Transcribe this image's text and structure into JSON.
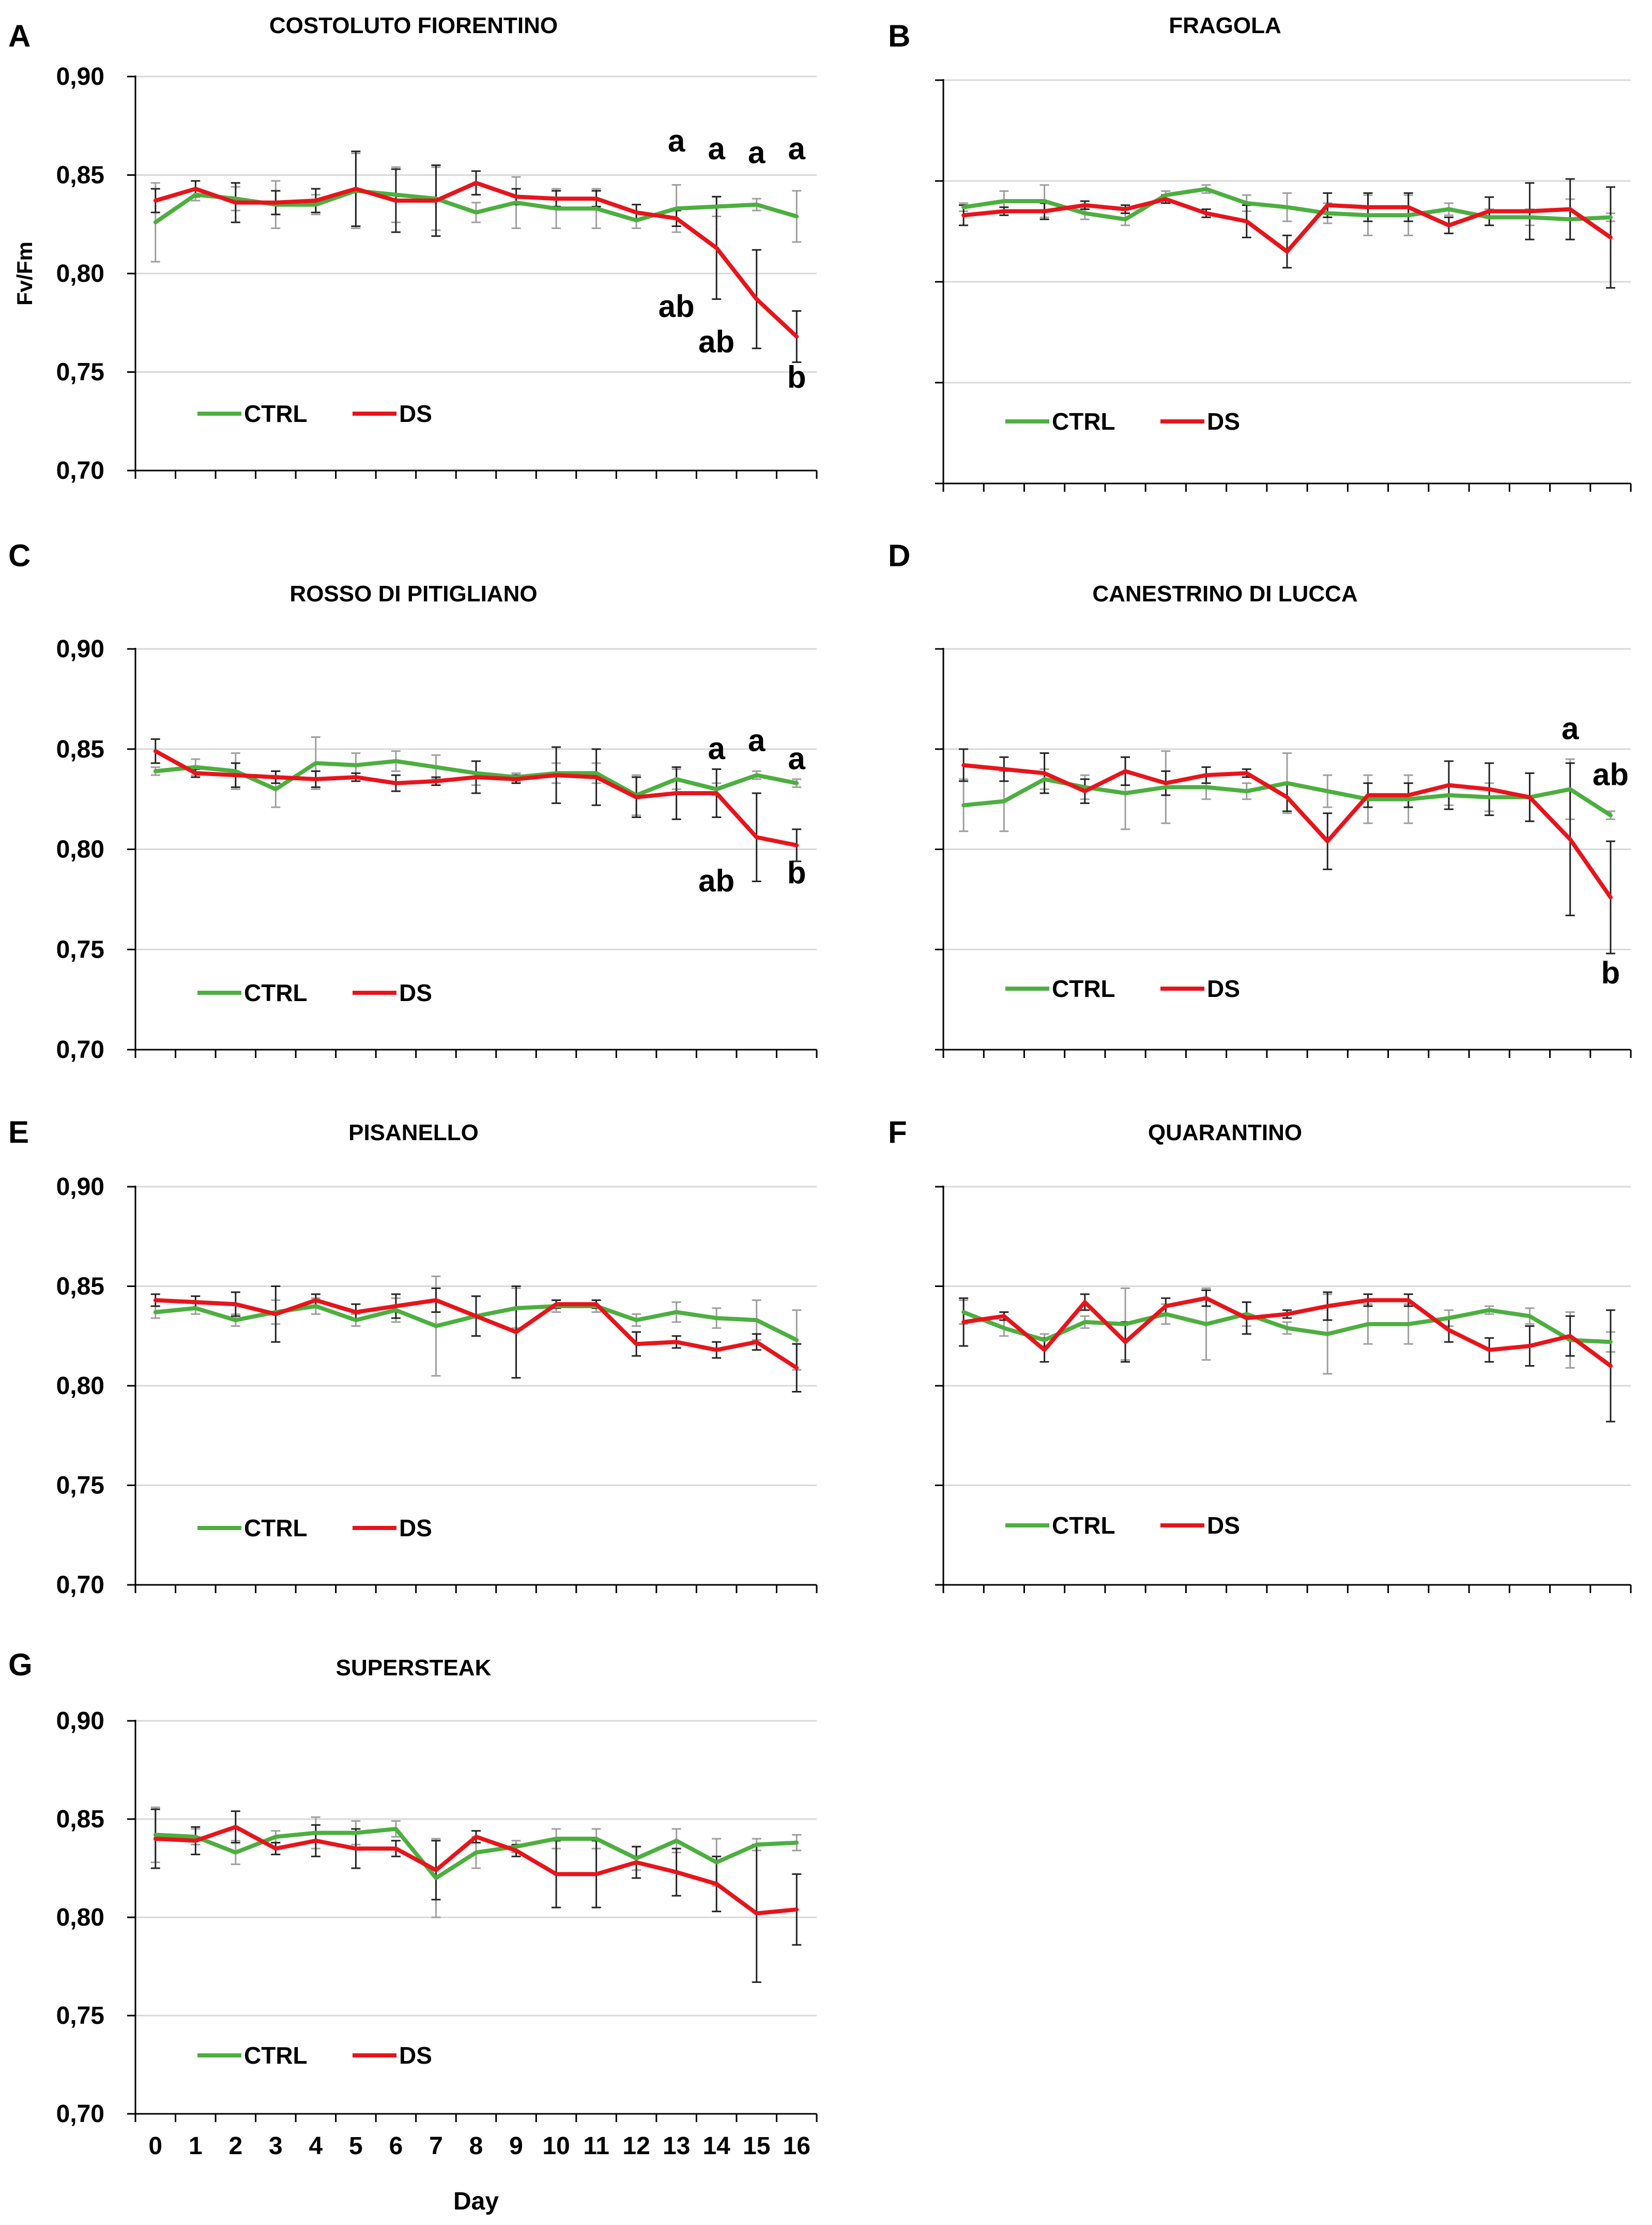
{
  "chart_data": [
    {
      "id": "A",
      "panel_label": "A",
      "type": "line",
      "title": "COSTOLUTO FIORENTINO",
      "ylabel": "Fv/Fm",
      "xlabel": "",
      "ylim": [
        0.7,
        0.9
      ],
      "yticks": [
        0.7,
        0.75,
        0.8,
        0.85,
        0.9
      ],
      "ytick_labels": [
        "0,70",
        "0,75",
        "0,80",
        "0,85",
        "0,90"
      ],
      "x": [
        0,
        1,
        2,
        3,
        4,
        5,
        6,
        7,
        8,
        9,
        10,
        11,
        12,
        13,
        14,
        15,
        16
      ],
      "xtick_labels": [],
      "legend": [
        "CTRL",
        "DS"
      ],
      "series": [
        {
          "name": "CTRL",
          "color": "#4caf3f",
          "values": [
            0.826,
            0.84,
            0.838,
            0.835,
            0.835,
            0.842,
            0.84,
            0.838,
            0.831,
            0.836,
            0.833,
            0.833,
            0.827,
            0.833,
            0.834,
            0.835,
            0.829
          ],
          "errors": [
            0.02,
            0.003,
            0.006,
            0.012,
            0.005,
            0.019,
            0.014,
            0.016,
            0.005,
            0.013,
            0.01,
            0.01,
            0.004,
            0.012,
            0.005,
            0.003,
            0.013
          ]
        },
        {
          "name": "DS",
          "color": "#e8141c",
          "values": [
            0.837,
            0.843,
            0.836,
            0.836,
            0.837,
            0.843,
            0.837,
            0.837,
            0.846,
            0.839,
            0.838,
            0.838,
            0.831,
            0.828,
            0.813,
            0.787,
            0.768
          ],
          "errors": [
            0.006,
            0.004,
            0.01,
            0.006,
            0.006,
            0.019,
            0.016,
            0.018,
            0.006,
            0.004,
            0.004,
            0.004,
            0.004,
            0.004,
            0.026,
            0.025,
            0.013
          ]
        }
      ],
      "annotations": [
        {
          "text": "a",
          "x": 13,
          "y": 0.862
        },
        {
          "text": "a",
          "x": 14,
          "y": 0.858
        },
        {
          "text": "a",
          "x": 15,
          "y": 0.856
        },
        {
          "text": "a",
          "x": 16,
          "y": 0.858
        },
        {
          "text": "ab",
          "x": 13,
          "y": 0.778
        },
        {
          "text": "ab",
          "x": 14,
          "y": 0.76
        },
        {
          "text": "b",
          "x": 16,
          "y": 0.742
        }
      ]
    },
    {
      "id": "B",
      "panel_label": "B",
      "type": "line",
      "title": "FRAGOLA",
      "ylabel": "",
      "xlabel": "",
      "ylim": [
        0.7,
        0.9
      ],
      "yticks": [
        0.7,
        0.75,
        0.8,
        0.85,
        0.9
      ],
      "ytick_labels": [],
      "x": [
        0,
        1,
        2,
        3,
        4,
        5,
        6,
        7,
        8,
        9,
        10,
        11,
        12,
        13,
        14,
        15,
        16
      ],
      "xtick_labels": [],
      "legend": [
        "CTRL",
        "DS"
      ],
      "series": [
        {
          "name": "CTRL",
          "color": "#4caf3f",
          "values": [
            0.837,
            0.84,
            0.84,
            0.834,
            0.831,
            0.843,
            0.846,
            0.839,
            0.837,
            0.834,
            0.833,
            0.833,
            0.836,
            0.832,
            0.832,
            0.831,
            0.832
          ],
          "errors": [
            0.002,
            0.005,
            0.008,
            0.003,
            0.003,
            0.002,
            0.002,
            0.004,
            0.007,
            0.005,
            0.01,
            0.01,
            0.003,
            0.004,
            0.004,
            0.01,
            0.002
          ]
        },
        {
          "name": "DS",
          "color": "#e8141c",
          "values": [
            0.833,
            0.835,
            0.835,
            0.838,
            0.836,
            0.841,
            0.834,
            0.83,
            0.815,
            0.838,
            0.837,
            0.837,
            0.828,
            0.835,
            0.835,
            0.836,
            0.822
          ],
          "errors": [
            0.005,
            0.002,
            0.004,
            0.002,
            0.002,
            0.002,
            0.002,
            0.008,
            0.008,
            0.006,
            0.007,
            0.007,
            0.004,
            0.007,
            0.014,
            0.015,
            0.025
          ]
        }
      ],
      "annotations": []
    },
    {
      "id": "C",
      "panel_label": "C",
      "type": "line",
      "title": "ROSSO DI PITIGLIANO",
      "ylabel": "",
      "xlabel": "",
      "ylim": [
        0.7,
        0.9
      ],
      "yticks": [
        0.7,
        0.75,
        0.8,
        0.85,
        0.9
      ],
      "ytick_labels": [
        "0,70",
        "0,75",
        "0,80",
        "0,85",
        "0,90"
      ],
      "x": [
        0,
        1,
        2,
        3,
        4,
        5,
        6,
        7,
        8,
        9,
        10,
        11,
        12,
        13,
        14,
        15,
        16
      ],
      "xtick_labels": [],
      "legend": [
        "CTRL",
        "DS"
      ],
      "series": [
        {
          "name": "CTRL",
          "color": "#4caf3f",
          "values": [
            0.839,
            0.841,
            0.839,
            0.83,
            0.843,
            0.842,
            0.844,
            0.841,
            0.838,
            0.836,
            0.838,
            0.838,
            0.827,
            0.835,
            0.83,
            0.837,
            0.833
          ],
          "errors": [
            0.002,
            0.004,
            0.009,
            0.009,
            0.013,
            0.006,
            0.005,
            0.006,
            0.006,
            0.002,
            0.005,
            0.005,
            0.01,
            0.005,
            0.003,
            0.002,
            0.002
          ]
        },
        {
          "name": "DS",
          "color": "#e8141c",
          "values": [
            0.849,
            0.838,
            0.837,
            0.836,
            0.835,
            0.836,
            0.833,
            0.834,
            0.836,
            0.835,
            0.837,
            0.836,
            0.826,
            0.828,
            0.828,
            0.806,
            0.802
          ],
          "errors": [
            0.006,
            0.002,
            0.006,
            0.003,
            0.004,
            0.002,
            0.004,
            0.002,
            0.008,
            0.002,
            0.014,
            0.014,
            0.01,
            0.013,
            0.012,
            0.022,
            0.008
          ]
        }
      ],
      "annotations": [
        {
          "text": "a",
          "x": 14,
          "y": 0.845
        },
        {
          "text": "a",
          "x": 15,
          "y": 0.849
        },
        {
          "text": "a",
          "x": 16,
          "y": 0.84
        },
        {
          "text": "ab",
          "x": 14,
          "y": 0.779
        },
        {
          "text": "b",
          "x": 16,
          "y": 0.783
        }
      ]
    },
    {
      "id": "D",
      "panel_label": "D",
      "type": "line",
      "title": "CANESTRINO DI LUCCA",
      "ylabel": "",
      "xlabel": "",
      "ylim": [
        0.7,
        0.9
      ],
      "yticks": [
        0.7,
        0.75,
        0.8,
        0.85,
        0.9
      ],
      "ytick_labels": [],
      "x": [
        0,
        1,
        2,
        3,
        4,
        5,
        6,
        7,
        8,
        9,
        10,
        11,
        12,
        13,
        14,
        15,
        16
      ],
      "xtick_labels": [],
      "legend": [
        "CTRL",
        "DS"
      ],
      "series": [
        {
          "name": "CTRL",
          "color": "#4caf3f",
          "values": [
            0.822,
            0.824,
            0.835,
            0.831,
            0.828,
            0.831,
            0.831,
            0.829,
            0.833,
            0.829,
            0.825,
            0.825,
            0.827,
            0.826,
            0.826,
            0.83,
            0.817
          ],
          "errors": [
            0.013,
            0.015,
            0.005,
            0.006,
            0.018,
            0.018,
            0.006,
            0.004,
            0.015,
            0.008,
            0.012,
            0.012,
            0.005,
            0.007,
            0.012,
            0.015,
            0.002
          ]
        },
        {
          "name": "DS",
          "color": "#e8141c",
          "values": [
            0.842,
            0.84,
            0.838,
            0.829,
            0.839,
            0.833,
            0.837,
            0.838,
            0.826,
            0.804,
            0.827,
            0.827,
            0.832,
            0.83,
            0.826,
            0.805,
            0.776
          ],
          "errors": [
            0.008,
            0.006,
            0.01,
            0.006,
            0.007,
            0.006,
            0.004,
            0.002,
            0.007,
            0.014,
            0.006,
            0.006,
            0.012,
            0.013,
            0.012,
            0.038,
            0.028
          ]
        }
      ],
      "annotations": [
        {
          "text": "a",
          "x": 15,
          "y": 0.855
        },
        {
          "text": "ab",
          "x": 16,
          "y": 0.832
        },
        {
          "text": "b",
          "x": 16,
          "y": 0.733
        }
      ]
    },
    {
      "id": "E",
      "panel_label": "E",
      "type": "line",
      "title": "PISANELLO",
      "ylabel": "",
      "xlabel": "",
      "ylim": [
        0.7,
        0.9
      ],
      "yticks": [
        0.7,
        0.75,
        0.8,
        0.85,
        0.9
      ],
      "ytick_labels": [
        "0,70",
        "0,75",
        "0,80",
        "0,85",
        "0,90"
      ],
      "x": [
        0,
        1,
        2,
        3,
        4,
        5,
        6,
        7,
        8,
        9,
        10,
        11,
        12,
        13,
        14,
        15,
        16
      ],
      "xtick_labels": [],
      "legend": [
        "CTRL",
        "DS"
      ],
      "series": [
        {
          "name": "CTRL",
          "color": "#4caf3f",
          "values": [
            0.837,
            0.839,
            0.833,
            0.837,
            0.84,
            0.833,
            0.838,
            0.83,
            0.835,
            0.839,
            0.84,
            0.84,
            0.833,
            0.837,
            0.834,
            0.833,
            0.823
          ],
          "errors": [
            0.003,
            0.003,
            0.003,
            0.006,
            0.004,
            0.003,
            0.006,
            0.025,
            0.01,
            0.01,
            0.003,
            0.003,
            0.003,
            0.005,
            0.005,
            0.01,
            0.015
          ]
        },
        {
          "name": "DS",
          "color": "#e8141c",
          "values": [
            0.843,
            0.842,
            0.841,
            0.836,
            0.843,
            0.837,
            0.84,
            0.843,
            0.835,
            0.827,
            0.841,
            0.841,
            0.821,
            0.822,
            0.818,
            0.822,
            0.809
          ],
          "errors": [
            0.003,
            0.003,
            0.006,
            0.014,
            0.003,
            0.004,
            0.006,
            0.006,
            0.01,
            0.023,
            0.002,
            0.002,
            0.006,
            0.003,
            0.004,
            0.004,
            0.012
          ]
        }
      ],
      "annotations": []
    },
    {
      "id": "F",
      "panel_label": "F",
      "type": "line",
      "title": "QUARANTINO",
      "ylabel": "",
      "xlabel": "",
      "ylim": [
        0.7,
        0.9
      ],
      "yticks": [
        0.7,
        0.75,
        0.8,
        0.85,
        0.9
      ],
      "ytick_labels": [],
      "x": [
        0,
        1,
        2,
        3,
        4,
        5,
        6,
        7,
        8,
        9,
        10,
        11,
        12,
        13,
        14,
        15,
        16
      ],
      "xtick_labels": [],
      "legend": [
        "CTRL",
        "DS"
      ],
      "series": [
        {
          "name": "CTRL",
          "color": "#4caf3f",
          "values": [
            0.837,
            0.829,
            0.823,
            0.832,
            0.831,
            0.836,
            0.831,
            0.836,
            0.829,
            0.826,
            0.831,
            0.831,
            0.834,
            0.838,
            0.835,
            0.823,
            0.822
          ],
          "errors": [
            0.006,
            0.004,
            0.003,
            0.003,
            0.018,
            0.005,
            0.018,
            0.006,
            0.003,
            0.02,
            0.01,
            0.01,
            0.004,
            0.002,
            0.004,
            0.014,
            0.005
          ]
        },
        {
          "name": "DS",
          "color": "#e8141c",
          "values": [
            0.832,
            0.835,
            0.818,
            0.842,
            0.822,
            0.84,
            0.844,
            0.834,
            0.836,
            0.84,
            0.843,
            0.843,
            0.828,
            0.818,
            0.82,
            0.825,
            0.81
          ],
          "errors": [
            0.012,
            0.002,
            0.006,
            0.004,
            0.01,
            0.004,
            0.004,
            0.008,
            0.002,
            0.007,
            0.003,
            0.003,
            0.006,
            0.006,
            0.01,
            0.01,
            0.028
          ]
        }
      ],
      "annotations": []
    },
    {
      "id": "G",
      "panel_label": "G",
      "type": "line",
      "title": "SUPERSTEAK",
      "ylabel": "",
      "xlabel": "Day",
      "ylim": [
        0.7,
        0.9
      ],
      "yticks": [
        0.7,
        0.75,
        0.8,
        0.85,
        0.9
      ],
      "ytick_labels": [
        "0,70",
        "0,75",
        "0,80",
        "0,85",
        "0,90"
      ],
      "x": [
        0,
        1,
        2,
        3,
        4,
        5,
        6,
        7,
        8,
        9,
        10,
        11,
        12,
        13,
        14,
        15,
        16
      ],
      "xtick_labels": [
        "0",
        "1",
        "2",
        "3",
        "4",
        "5",
        "6",
        "7",
        "8",
        "9",
        "10",
        "11",
        "12",
        "13",
        "14",
        "15",
        "16"
      ],
      "legend": [
        "CTRL",
        "DS"
      ],
      "series": [
        {
          "name": "CTRL",
          "color": "#4caf3f",
          "values": [
            0.842,
            0.841,
            0.833,
            0.841,
            0.843,
            0.843,
            0.845,
            0.82,
            0.833,
            0.836,
            0.84,
            0.84,
            0.83,
            0.839,
            0.828,
            0.837,
            0.838
          ],
          "errors": [
            0.014,
            0.004,
            0.006,
            0.003,
            0.008,
            0.006,
            0.004,
            0.02,
            0.008,
            0.003,
            0.005,
            0.005,
            0.006,
            0.006,
            0.012,
            0.003,
            0.004
          ]
        },
        {
          "name": "DS",
          "color": "#e8141c",
          "values": [
            0.84,
            0.839,
            0.846,
            0.835,
            0.839,
            0.835,
            0.835,
            0.824,
            0.841,
            0.834,
            0.822,
            0.822,
            0.828,
            0.823,
            0.817,
            0.802,
            0.804
          ],
          "errors": [
            0.015,
            0.007,
            0.008,
            0.003,
            0.008,
            0.01,
            0.004,
            0.015,
            0.003,
            0.003,
            0.017,
            0.017,
            0.008,
            0.012,
            0.014,
            0.035,
            0.018
          ]
        }
      ],
      "annotations": []
    }
  ]
}
